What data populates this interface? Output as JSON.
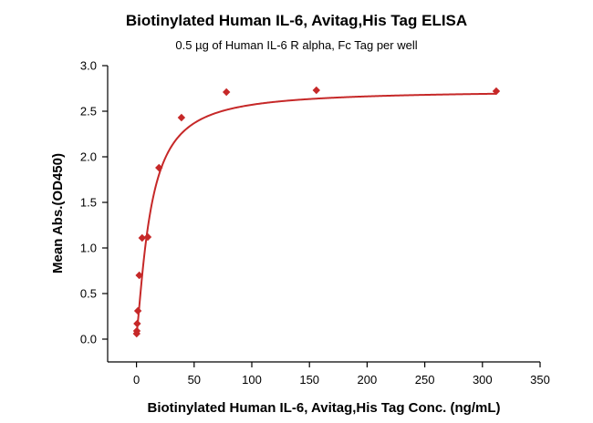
{
  "chart_data": {
    "type": "scatter",
    "title": "Biotinylated Human IL-6, Avitag,His Tag ELISA",
    "subtitle": "0.5 µg of Human IL-6 R alpha, Fc Tag per well",
    "xlabel": "Biotinylated Human IL-6, Avitag,His Tag Conc. (ng/mL)",
    "ylabel": "Mean Abs.(OD450)",
    "xlim": [
      -25,
      350
    ],
    "ylim": [
      -0.25,
      3.0
    ],
    "x_ticks": [
      0,
      50,
      100,
      150,
      200,
      250,
      300,
      350
    ],
    "x_tick_labels": [
      "0",
      "50",
      "100",
      "150",
      "200",
      "250",
      "300",
      "350"
    ],
    "y_ticks": [
      0.0,
      0.5,
      1.0,
      1.5,
      2.0,
      2.5,
      3.0
    ],
    "y_tick_labels": [
      "0.0",
      "0.5",
      "1.0",
      "1.5",
      "2.0",
      "2.5",
      "3.0"
    ],
    "grid": false,
    "marker": "diamond",
    "color": "#c62828",
    "series": [
      {
        "x": [
          0.15,
          0.3,
          0.6,
          1.2,
          2.4,
          4.9,
          9.8,
          19.5,
          39,
          78,
          156,
          312
        ],
        "y": [
          0.06,
          0.09,
          0.17,
          0.31,
          0.7,
          1.11,
          1.12,
          1.88,
          2.43,
          2.71,
          2.73,
          2.72
        ]
      }
    ],
    "fit_curve": {
      "model": "4PL",
      "bottom": 0.06,
      "top": 2.73,
      "ec50": 12,
      "hill": 1.3
    }
  }
}
